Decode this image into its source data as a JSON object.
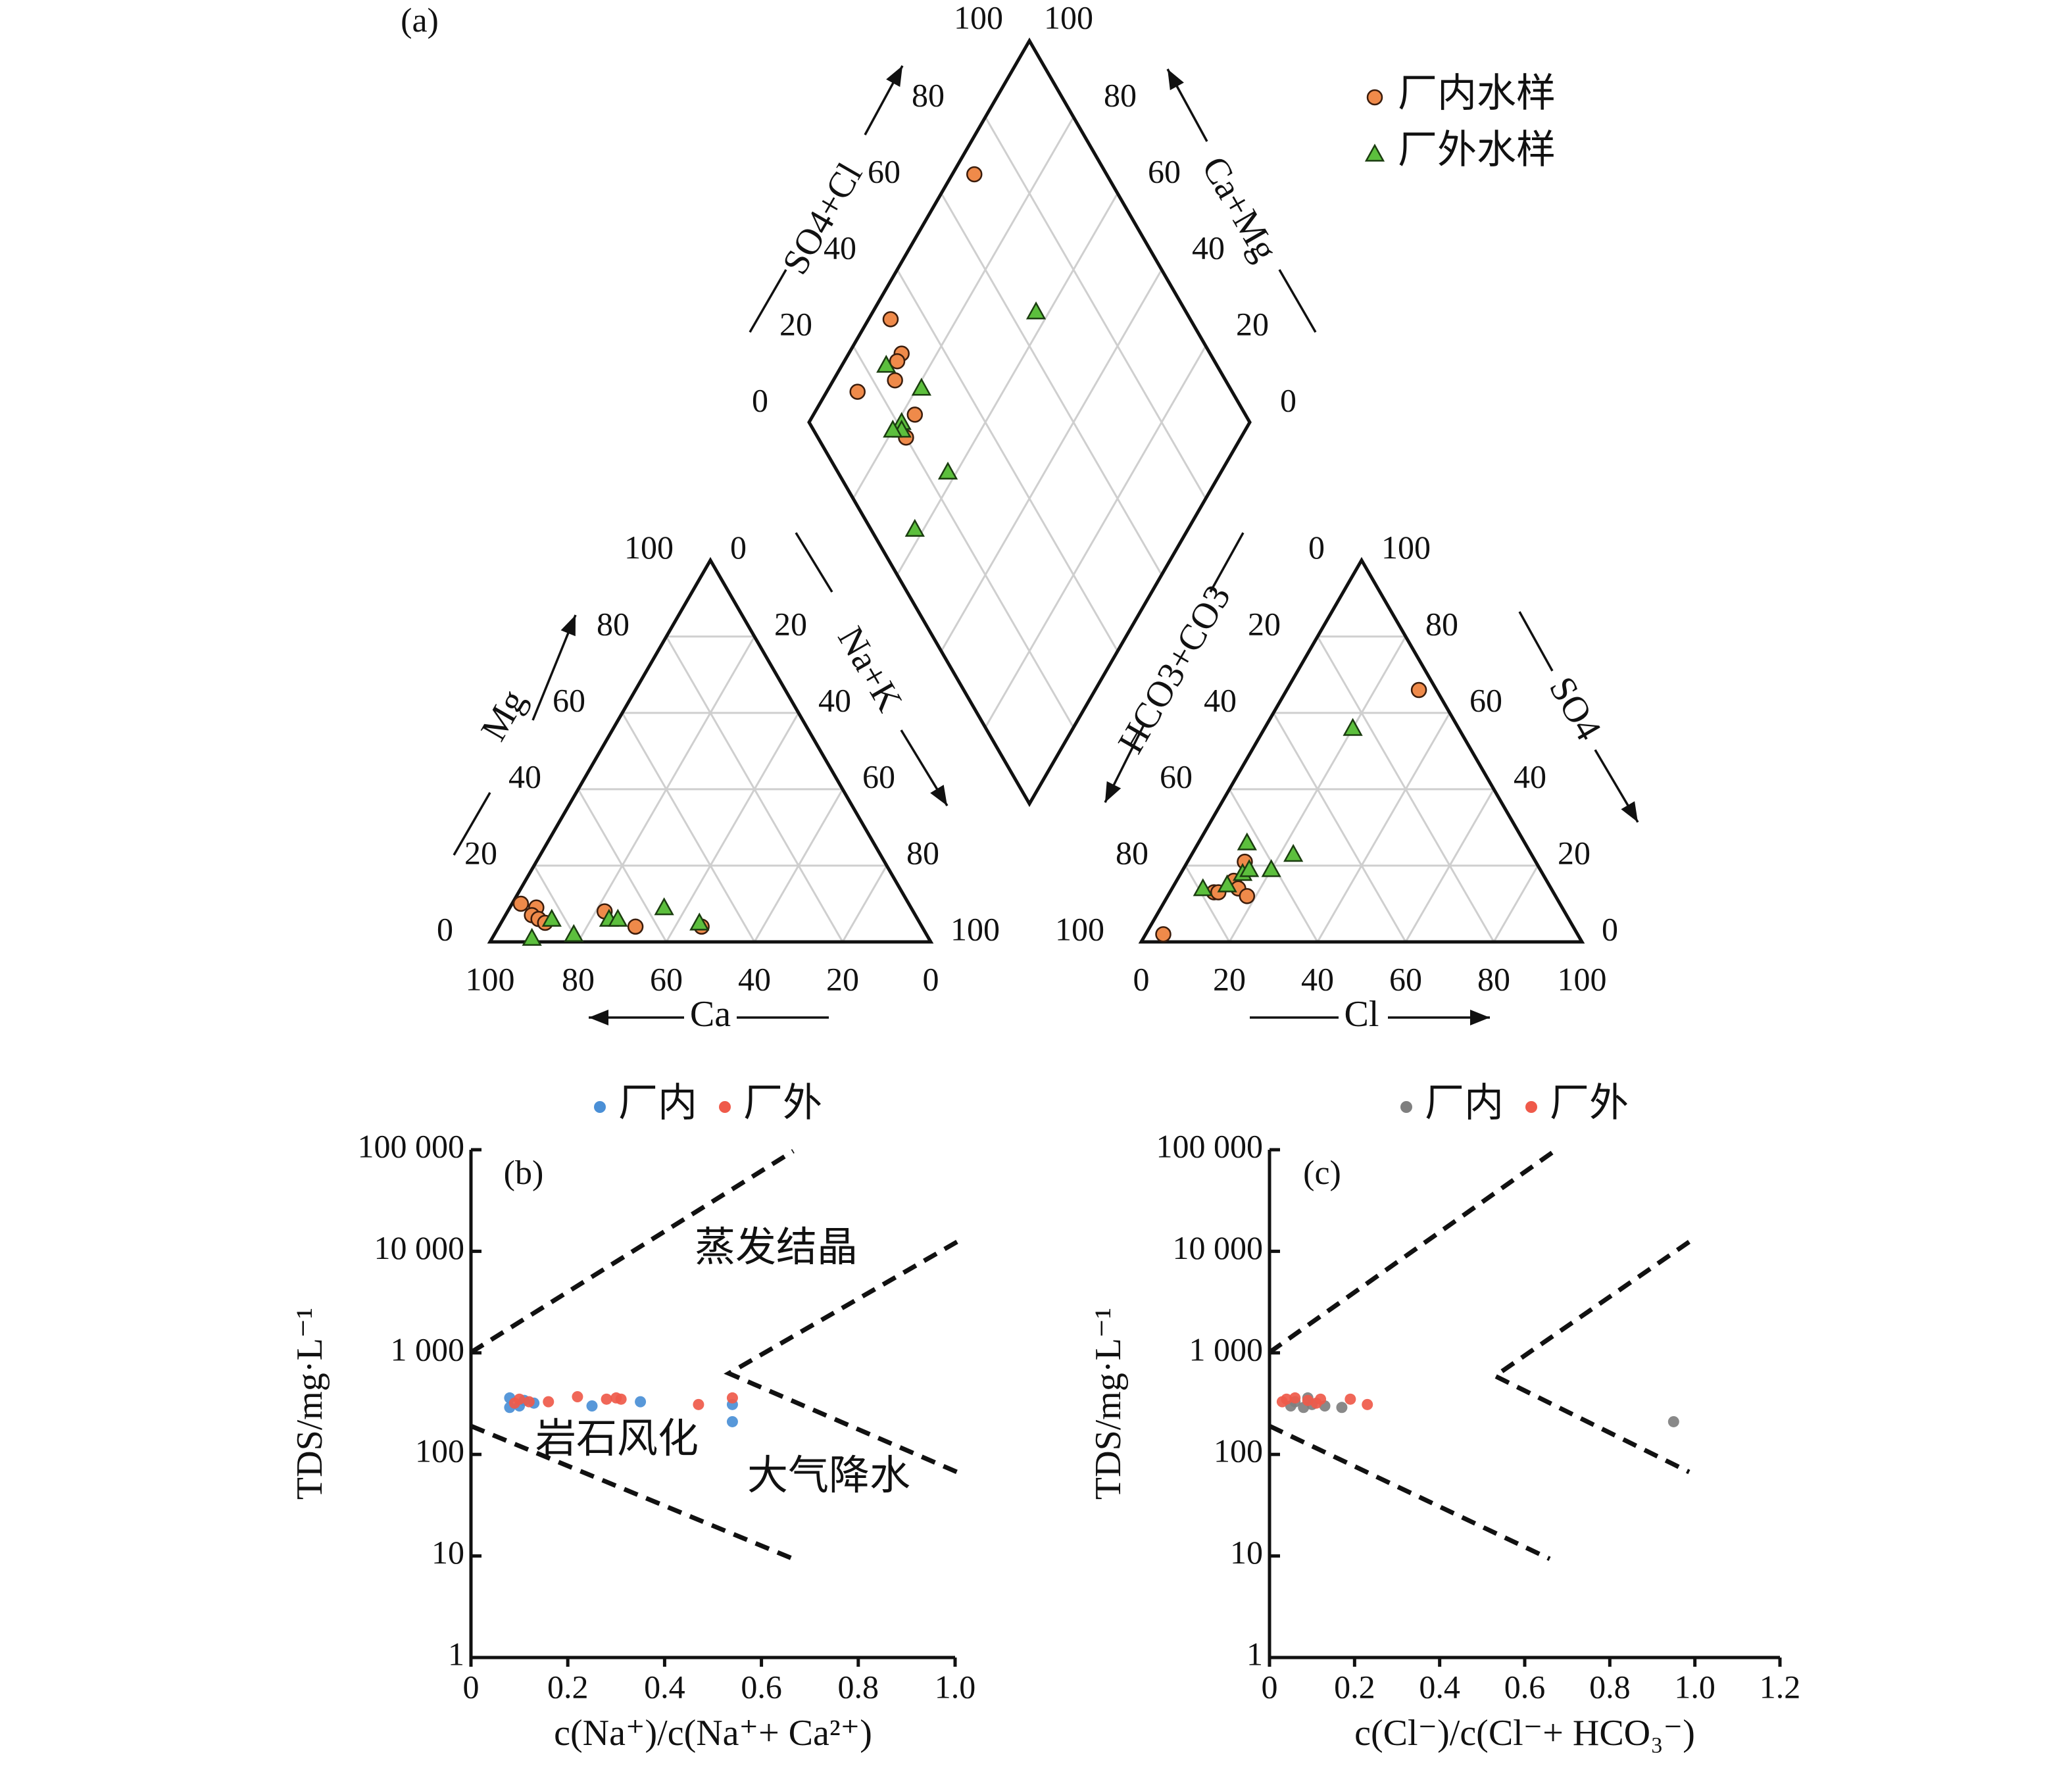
{
  "chart_data": [
    {
      "type": "scatter",
      "panel": "(a)",
      "subtype": "piper",
      "legend": [
        {
          "label": "厂内水样",
          "marker": "circle",
          "color": "#ef8a4a"
        },
        {
          "label": "厂外水样",
          "marker": "triangle",
          "color": "#5cbf3d"
        }
      ],
      "ticks": [
        "0",
        "20",
        "40",
        "60",
        "80",
        "100"
      ],
      "axes": {
        "cation_left": "Mg",
        "cation_right": "Na+K",
        "cation_bottom": "Ca",
        "anion_left": "HCO3+CO3",
        "anion_right": "SO4",
        "anion_bottom": "Cl",
        "diamond_left": "SO4+Cl",
        "diamond_right": "Ca+Mg"
      },
      "cation_points": [
        {
          "series": "厂内水样",
          "ca": 88,
          "mg": 10
        },
        {
          "series": "厂内水样",
          "ca": 85,
          "mg": 9
        },
        {
          "series": "厂内水样",
          "ca": 87,
          "mg": 7
        },
        {
          "series": "厂内水样",
          "ca": 86,
          "mg": 6
        },
        {
          "series": "厂内水样",
          "ca": 85,
          "mg": 5
        },
        {
          "series": "厂内水样",
          "ca": 70,
          "mg": 8
        },
        {
          "series": "厂内水样",
          "ca": 65,
          "mg": 4
        },
        {
          "series": "厂内水样",
          "ca": 50,
          "mg": 4
        },
        {
          "series": "厂外水样",
          "ca": 83,
          "mg": 6
        },
        {
          "series": "厂外水样",
          "ca": 80,
          "mg": 2
        },
        {
          "series": "厂外水样",
          "ca": 70,
          "mg": 6
        },
        {
          "series": "厂外水样",
          "ca": 68,
          "mg": 6
        },
        {
          "series": "厂外水样",
          "ca": 56,
          "mg": 9
        },
        {
          "series": "厂外水样",
          "ca": 50,
          "mg": 5
        },
        {
          "series": "厂外水样",
          "ca": 90,
          "mg": 1
        }
      ],
      "anion_points": [
        {
          "series": "厂内水样",
          "cl": 4,
          "so4": 2
        },
        {
          "series": "厂内水样",
          "cl": 10,
          "so4": 13
        },
        {
          "series": "厂内水样",
          "cl": 11,
          "so4": 13
        },
        {
          "series": "厂内水样",
          "cl": 13,
          "so4": 16
        },
        {
          "series": "厂内水样",
          "cl": 15,
          "so4": 14
        },
        {
          "series": "厂内水样",
          "cl": 13,
          "so4": 21
        },
        {
          "series": "厂内水样",
          "cl": 18,
          "so4": 12
        },
        {
          "series": "厂内水样",
          "cl": 30,
          "so4": 66
        },
        {
          "series": "厂外水样",
          "cl": 7,
          "so4": 14
        },
        {
          "series": "厂外水样",
          "cl": 12,
          "so4": 15
        },
        {
          "series": "厂外水样",
          "cl": 14,
          "so4": 18
        },
        {
          "series": "厂外水样",
          "cl": 15,
          "so4": 19
        },
        {
          "series": "厂外水样",
          "cl": 20,
          "so4": 19
        },
        {
          "series": "厂外水样",
          "cl": 23,
          "so4": 23
        },
        {
          "series": "厂外水样",
          "cl": 11,
          "so4": 26
        },
        {
          "series": "厂外水样",
          "cl": 20,
          "so4": 56
        }
      ],
      "diamond_points": [
        {
          "series": "厂内水样",
          "so4cl": 70,
          "camg": 95
        },
        {
          "series": "厂内水样",
          "so4cl": 32,
          "camg": 95
        },
        {
          "series": "厂内水样",
          "so4cl": 30,
          "camg": 88
        },
        {
          "series": "厂内水样",
          "so4cl": 28,
          "camg": 88
        },
        {
          "series": "厂内水样",
          "so4cl": 25,
          "camg": 86
        },
        {
          "series": "厂内水样",
          "so4cl": 15,
          "camg": 93
        },
        {
          "series": "厂内水样",
          "so4cl": 25,
          "camg": 77
        },
        {
          "series": "厂内水样",
          "so4cl": 20,
          "camg": 76
        },
        {
          "series": "厂外水样",
          "so4cl": 66,
          "camg": 63
        },
        {
          "series": "厂外水样",
          "so4cl": 30,
          "camg": 79
        },
        {
          "series": "厂外水样",
          "so4cl": 25,
          "camg": 90
        },
        {
          "series": "厂外水样",
          "so4cl": 21,
          "camg": 79
        },
        {
          "series": "厂外水样",
          "so4cl": 20,
          "camg": 78
        },
        {
          "series": "厂外水样",
          "so4cl": 18,
          "camg": 80
        },
        {
          "series": "厂外水样",
          "so4cl": 25,
          "camg": 62
        },
        {
          "series": "厂外水样",
          "so4cl": 10,
          "camg": 62
        }
      ]
    },
    {
      "type": "scatter",
      "panel": "(b)",
      "subtype": "gibbs",
      "xlabel": "c(Na⁺)/c(Na⁺+ Ca²⁺)",
      "ylabel": "TDS/mg·L⁻¹",
      "xlim": [
        0,
        1.0
      ],
      "ylim": [
        1,
        100000
      ],
      "yscale": "log",
      "xticks": [
        "0",
        "0.2",
        "0.4",
        "0.6",
        "0.8",
        "1.0"
      ],
      "yticks": [
        "1",
        "10",
        "100",
        "1 000",
        "10 000",
        "100 000"
      ],
      "regions": [
        "蒸发结晶",
        "岩石风化",
        "大气降水"
      ],
      "legend": [
        {
          "label": "厂内",
          "color": "#4a8fd6"
        },
        {
          "label": "厂外",
          "color": "#ef5a4a"
        }
      ],
      "series": [
        {
          "name": "厂内",
          "points": [
            [
              0.08,
              360
            ],
            [
              0.08,
              290
            ],
            [
              0.1,
              300
            ],
            [
              0.11,
              340
            ],
            [
              0.13,
              320
            ],
            [
              0.25,
              300
            ],
            [
              0.35,
              330
            ],
            [
              0.54,
              210
            ],
            [
              0.54,
              310
            ]
          ]
        },
        {
          "name": "厂外",
          "points": [
            [
              0.09,
              320
            ],
            [
              0.1,
              350
            ],
            [
              0.12,
              330
            ],
            [
              0.16,
              330
            ],
            [
              0.22,
              370
            ],
            [
              0.28,
              350
            ],
            [
              0.3,
              360
            ],
            [
              0.31,
              350
            ],
            [
              0.47,
              310
            ],
            [
              0.54,
              360
            ]
          ]
        }
      ]
    },
    {
      "type": "scatter",
      "panel": "(c)",
      "subtype": "gibbs",
      "xlabel": "c(Cl⁻)/c(Cl⁻+ HCO₃⁻)",
      "ylabel": "TDS/mg·L⁻¹",
      "xlim": [
        0,
        1.2
      ],
      "ylim": [
        1,
        100000
      ],
      "yscale": "log",
      "xticks": [
        "0",
        "0.2",
        "0.4",
        "0.6",
        "0.8",
        "1.0",
        "1.2"
      ],
      "yticks": [
        "1",
        "10",
        "100",
        "1 000",
        "10 000",
        "100 000"
      ],
      "legend": [
        {
          "label": "厂内",
          "color": "#7f7f7f"
        },
        {
          "label": "厂外",
          "color": "#ef5a4a"
        }
      ],
      "series": [
        {
          "name": "厂内",
          "points": [
            [
              0.05,
              300
            ],
            [
              0.06,
              330
            ],
            [
              0.08,
              290
            ],
            [
              0.09,
              360
            ],
            [
              0.1,
              310
            ],
            [
              0.13,
              300
            ],
            [
              0.17,
              290
            ],
            [
              0.95,
              210
            ]
          ]
        },
        {
          "name": "厂外",
          "points": [
            [
              0.03,
              330
            ],
            [
              0.04,
              350
            ],
            [
              0.06,
              360
            ],
            [
              0.09,
              340
            ],
            [
              0.11,
              320
            ],
            [
              0.12,
              350
            ],
            [
              0.19,
              350
            ],
            [
              0.23,
              310
            ]
          ]
        }
      ]
    }
  ]
}
